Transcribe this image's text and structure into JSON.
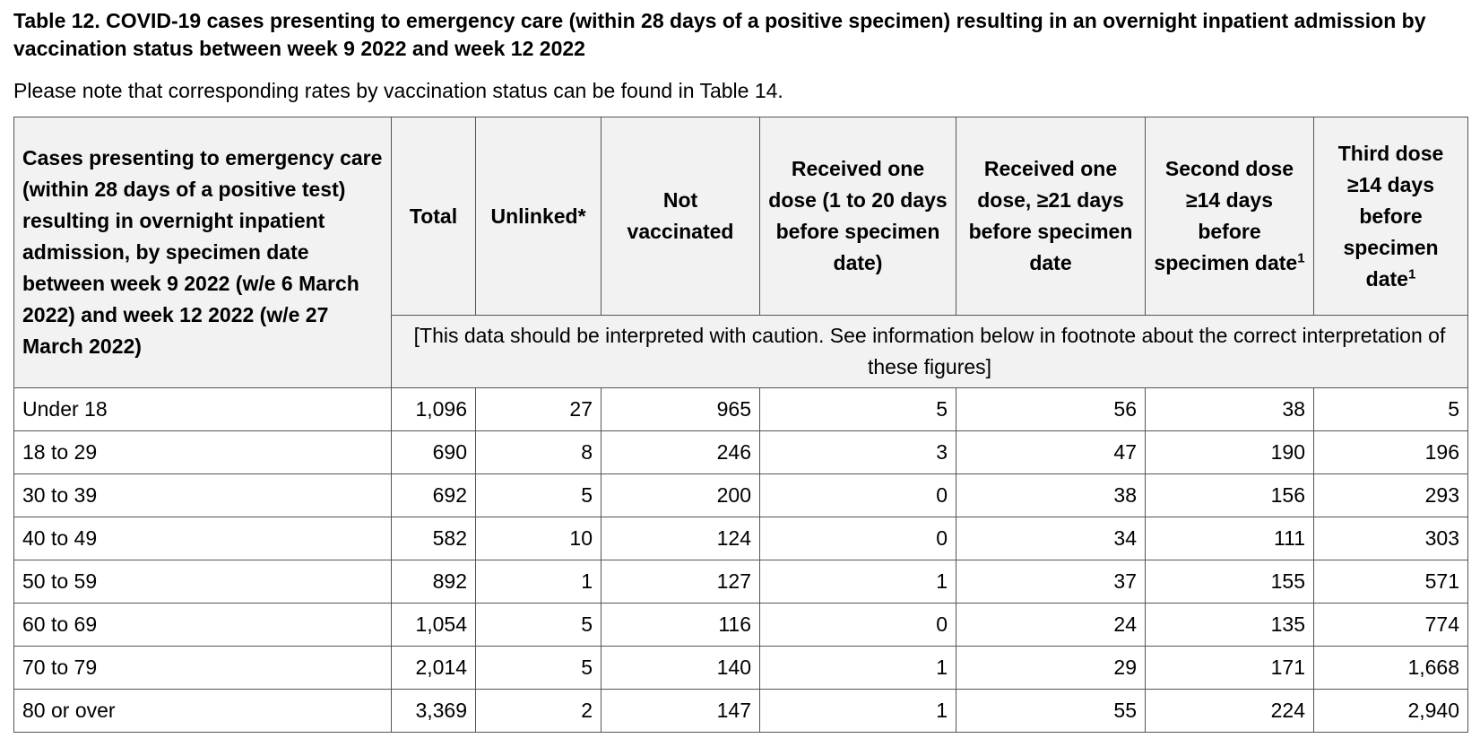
{
  "title": "Table 12. COVID-19 cases presenting to emergency care (within 28 days of a positive specimen) resulting in an overnight inpatient admission by vaccination status between week 9 2022 and week 12 2022",
  "note": "Please note that corresponding rates by vaccination status can be found in Table 14.",
  "table": {
    "stub_header": "Cases presenting to emergency care (within 28 days of a positive test) resulting in overnight inpatient admission, by specimen date between week 9 2022 (w/e 6 March 2022) and week 12 2022 (w/e 27 March 2022)",
    "columns": [
      {
        "text": "Total"
      },
      {
        "text": "Unlinked*"
      },
      {
        "text": "Not vaccinated"
      },
      {
        "text": "Received one dose (1 to 20 days before specimen date)"
      },
      {
        "text": "Received one dose, ≥21 days before specimen date"
      },
      {
        "text": "Second dose ≥14 days before specimen date",
        "sup": "1"
      },
      {
        "text": "Third dose ≥14 days before specimen date",
        "sup": "1"
      }
    ],
    "caution": "[This data should be interpreted with caution. See information below in footnote about the correct interpretation of these figures]",
    "rows": [
      [
        "Under 18",
        "1,096",
        "27",
        "965",
        "5",
        "56",
        "38",
        "5"
      ],
      [
        "18 to 29",
        "690",
        "8",
        "246",
        "3",
        "47",
        "190",
        "196"
      ],
      [
        "30 to 39",
        "692",
        "5",
        "200",
        "0",
        "38",
        "156",
        "293"
      ],
      [
        "40 to 49",
        "582",
        "10",
        "124",
        "0",
        "34",
        "111",
        "303"
      ],
      [
        "50 to 59",
        "892",
        "1",
        "127",
        "1",
        "37",
        "155",
        "571"
      ],
      [
        "60 to 69",
        "1,054",
        "5",
        "116",
        "0",
        "24",
        "135",
        "774"
      ],
      [
        "70 to 79",
        "2,014",
        "5",
        "140",
        "1",
        "29",
        "171",
        "1,668"
      ],
      [
        "80 or over",
        "3,369",
        "2",
        "147",
        "1",
        "55",
        "224",
        "2,940"
      ]
    ]
  }
}
